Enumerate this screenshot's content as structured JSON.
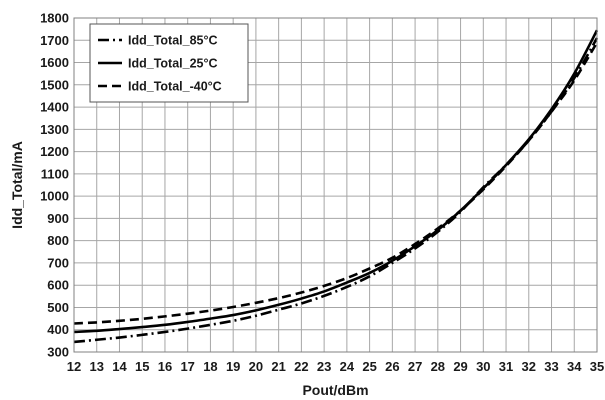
{
  "chart_data": {
    "type": "line",
    "xlabel": "Pout/dBm",
    "ylabel": "Idd_Total/mA",
    "xlim": [
      12,
      35
    ],
    "ylim": [
      300,
      1800
    ],
    "xticks": [
      "12",
      "13",
      "14",
      "15",
      "16",
      "17",
      "18",
      "19",
      "20",
      "21",
      "22",
      "23",
      "24",
      "25",
      "26",
      "27",
      "28",
      "29",
      "30",
      "31",
      "32",
      "33",
      "34",
      "35"
    ],
    "yticks": [
      "300",
      "400",
      "500",
      "600",
      "700",
      "800",
      "900",
      "1000",
      "1100",
      "1200",
      "1300",
      "1400",
      "1500",
      "1600",
      "1700",
      "1800"
    ],
    "grid": true,
    "legend_position": "top-left",
    "x": [
      12,
      13,
      14,
      15,
      16,
      17,
      18,
      19,
      20,
      21,
      22,
      23,
      24,
      25,
      26,
      27,
      28,
      29,
      30,
      31,
      32,
      33,
      34,
      35
    ],
    "series": [
      {
        "name": "Idd_Total_85°C",
        "style": "dash-dot",
        "color": "#000000",
        "values": [
          345,
          355,
          365,
          377,
          390,
          405,
          422,
          440,
          463,
          490,
          518,
          552,
          592,
          640,
          700,
          765,
          840,
          930,
          1040,
          1140,
          1250,
          1380,
          1530,
          1710
        ]
      },
      {
        "name": "Idd_Total_25°C",
        "style": "solid",
        "color": "#000000",
        "values": [
          390,
          395,
          403,
          412,
          422,
          435,
          450,
          466,
          487,
          512,
          540,
          572,
          612,
          655,
          710,
          775,
          848,
          935,
          1035,
          1140,
          1255,
          1390,
          1550,
          1745
        ]
      },
      {
        "name": "Idd_Total_-40°C",
        "style": "dashed",
        "color": "#000000",
        "values": [
          428,
          433,
          440,
          449,
          460,
          472,
          486,
          502,
          521,
          542,
          567,
          597,
          632,
          675,
          723,
          785,
          855,
          935,
          1030,
          1135,
          1250,
          1380,
          1520,
          1690
        ]
      }
    ]
  }
}
